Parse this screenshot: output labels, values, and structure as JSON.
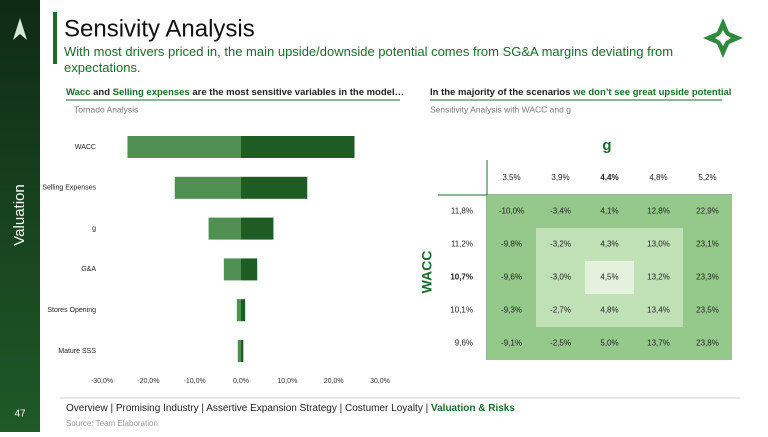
{
  "side_label": "Valuation",
  "page_number": "47",
  "header": {
    "title": "Sensivity Analysis",
    "subtitle": "With most drivers priced in, the main upside/downside potential comes from SG&A margins deviating from expectations."
  },
  "left": {
    "heading": [
      "Wacc",
      " and ",
      "Selling expenses",
      " are the most sensitive variables in the model…"
    ],
    "caption": "Tornado Analysis"
  },
  "right": {
    "heading": [
      "In the majority of the scenarios ",
      "we don’t see great upside potential"
    ],
    "caption": "Sensitivity Analysis with WACC and g"
  },
  "chart_data": {
    "type": "tornado",
    "categories": [
      "WACC",
      "Selling Expenses",
      "g",
      "G&A",
      "Stores Opening",
      "Mature SSS"
    ],
    "series": [
      {
        "color": "#4f8f52",
        "values": [
          -24.5,
          -14.3,
          -7,
          -3.7,
          -0.9,
          -0.7
        ]
      },
      {
        "color": "#1d5c22",
        "values": [
          24.5,
          14.3,
          7,
          3.5,
          0.9,
          0.5
        ]
      }
    ],
    "xlim": [
      -30,
      30
    ],
    "xticks": [
      {
        "value": -30,
        "label": "-30,0%"
      },
      {
        "value": -20,
        "label": "-20,0%"
      },
      {
        "value": -10,
        "label": "-10,0%"
      },
      {
        "value": 0,
        "label": "0,0%"
      },
      {
        "value": 10,
        "label": "10,0%"
      },
      {
        "value": 20,
        "label": "20,0%"
      },
      {
        "value": 30,
        "label": "30,0%"
      }
    ]
  },
  "table": {
    "column_title": "g",
    "row_title": "WACC",
    "columns": [
      "3,5%",
      "3,9%",
      "4,4%",
      "4,8%",
      "5,2%"
    ],
    "rows": [
      {
        "label": "11,8%",
        "cells": [
          "-10,0%",
          "-3,4%",
          "4,1%",
          "12,8%",
          "22,9%"
        ]
      },
      {
        "label": "11,2%",
        "cells": [
          "-9,8%",
          "-3,2%",
          "4,3%",
          "13,0%",
          "23,1%"
        ]
      },
      {
        "label": "10,7%",
        "cells": [
          "-9,6%",
          "-3,0%",
          "4,5%",
          "13,2%",
          "23,3%"
        ]
      },
      {
        "label": "10,1%",
        "cells": [
          "-9,3%",
          "-2,7%",
          "4,8%",
          "13,4%",
          "23,5%"
        ]
      },
      {
        "label": "9,6%",
        "cells": [
          "-9,1%",
          "-2,5%",
          "5,0%",
          "13,7%",
          "23,8%"
        ]
      }
    ]
  },
  "footer": {
    "nav": [
      "Overview | Promising Industry | Assertive Expansion Strategy | Costumer Loyalty | ",
      "Valuation & Risks"
    ],
    "source": "Source: Team Elaboration"
  }
}
